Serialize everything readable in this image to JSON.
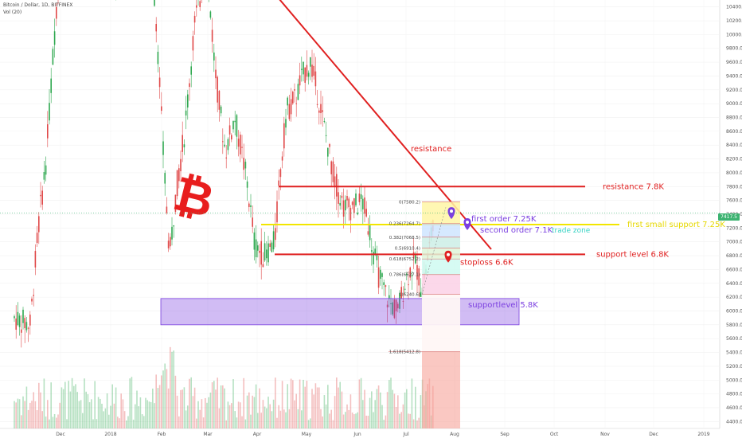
{
  "header": {
    "symbol_line": "Bitcoin / Dollar, 1D, BITFINEX",
    "volume_line": "Vol (20)"
  },
  "last_price_tag": "7417.5",
  "colors": {
    "up": "#2ea84f",
    "down": "#e04848",
    "resistance": "#e02020",
    "yellow_support": "#f2e600",
    "purple_zone": "#7b3fe0",
    "order_label": "#7b3fe0",
    "stoploss": "#e02020",
    "teal_text": "#39d3c4",
    "fib_text": "#444444"
  },
  "chart_data": {
    "type": "candlestick",
    "title": "",
    "x_tick_labels": [
      "Dec",
      "2018",
      "Feb",
      "Mar",
      "Apr",
      "May",
      "Jun",
      "Jul",
      "Aug",
      "Sep",
      "Oct",
      "Nov",
      "Dec",
      "2019"
    ],
    "y_tick_labels": [
      "10400.0",
      "10200.0",
      "10000.0",
      "9800.0",
      "9600.0",
      "9400.0",
      "9200.0",
      "9000.0",
      "8800.0",
      "8600.0",
      "8400.0",
      "8200.0",
      "8000.0",
      "7800.0",
      "7600.0",
      "7400.0",
      "7200.0",
      "7000.0",
      "6800.0",
      "6600.0",
      "6400.0",
      "6200.0",
      "6000.0",
      "5800.0",
      "5600.0",
      "5400.0",
      "5200.0",
      "5000.0",
      "4800.0",
      "4600.0",
      "4400.0"
    ],
    "ylim": [
      4300,
      10500
    ],
    "current_price": 7417.5,
    "levels": [
      {
        "label": "resistance 7.8K",
        "value": 7800
      },
      {
        "label": "first small support 7.25K",
        "value": 7250
      },
      {
        "label": "support level 6.8K",
        "value": 6820
      }
    ],
    "trendline_label": "resistance",
    "zone": {
      "label": "supportlevel 5.8K",
      "low": 5800,
      "high": 6180
    },
    "markers": [
      {
        "label": "first order 7.25K",
        "value": 7330
      },
      {
        "label": "second order 7.1K",
        "value": 7170
      },
      {
        "label": "stoploss 6.6K",
        "value": 6700
      }
    ],
    "trade_zone_label": "trade zone",
    "fib_levels": [
      {
        "label": "0(7580.2)",
        "value": 7580.2
      },
      {
        "label": "0.236(7264.7)",
        "value": 7264.7
      },
      {
        "label": "0.382(7068.5)",
        "value": 7068.5
      },
      {
        "label": "0.5(6910.4)",
        "value": 6910.4
      },
      {
        "label": "0.618(6752.2)",
        "value": 6752.2
      },
      {
        "label": "0.786(6527.1)",
        "value": 6527.1
      },
      {
        "label": "1(6240.6)",
        "value": 6240.6
      },
      {
        "label": "1.618(5412.8)",
        "value": 5412.8
      }
    ]
  }
}
